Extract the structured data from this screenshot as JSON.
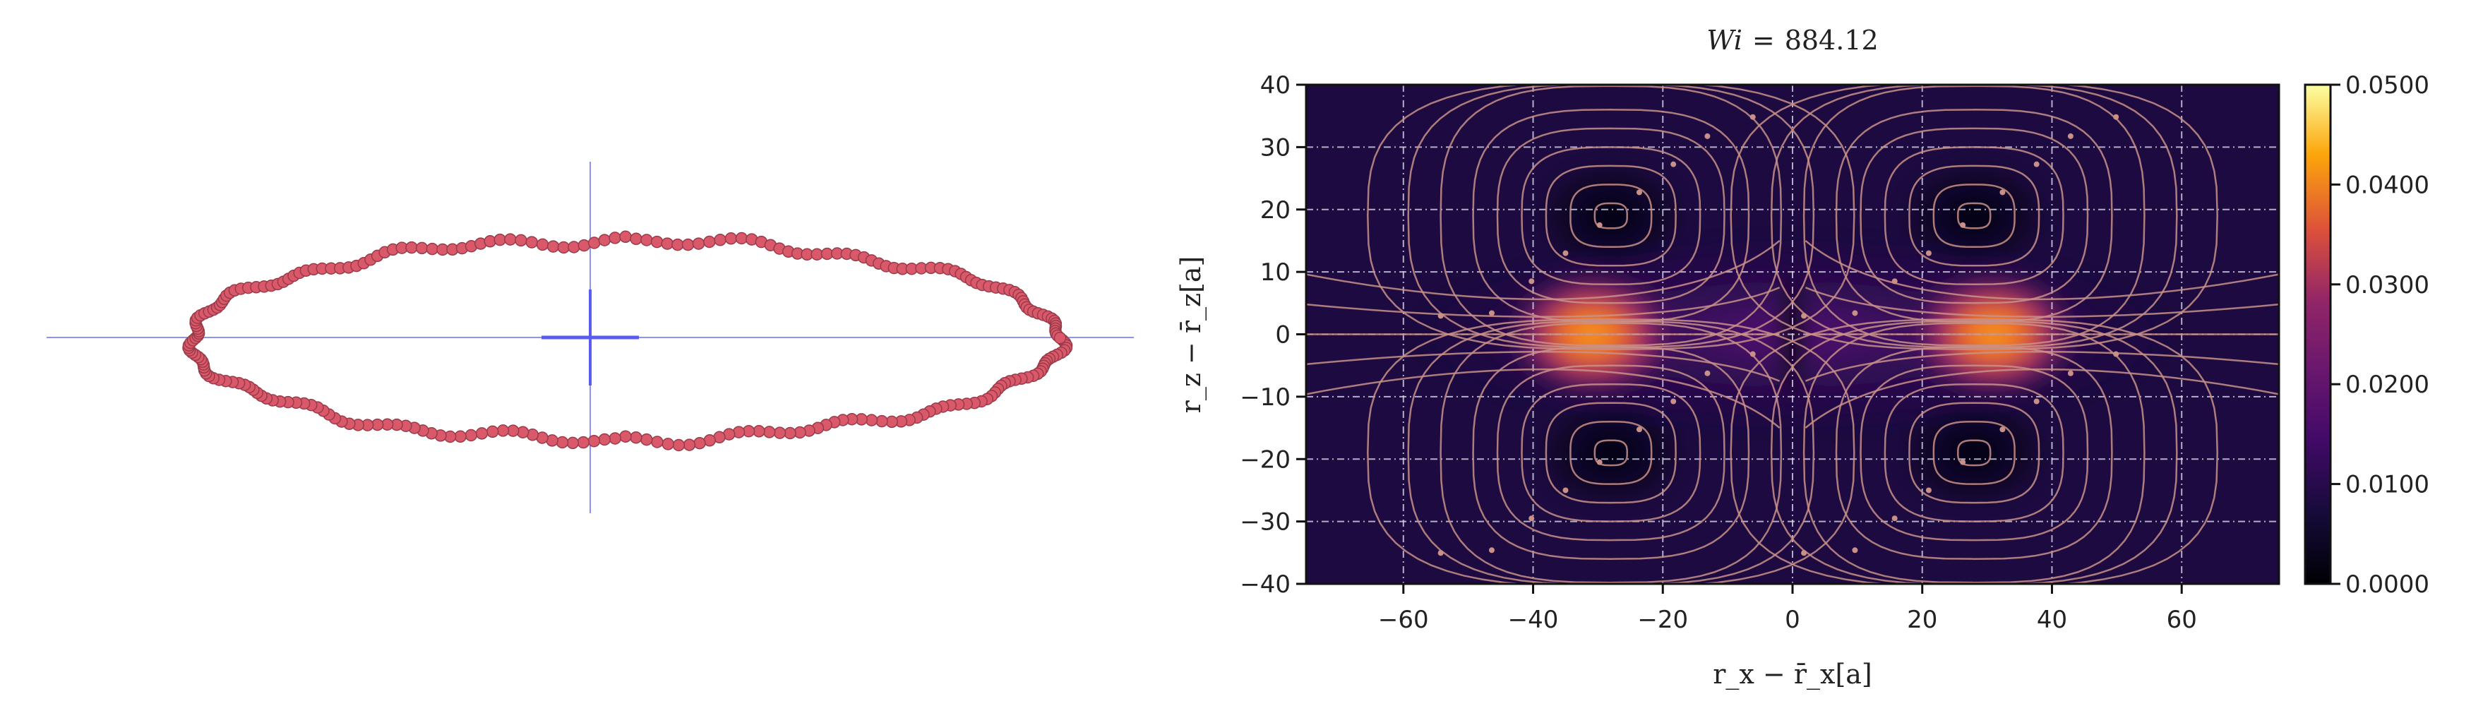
{
  "left_panel": {
    "bead_color": "#d9596a",
    "axis_color": "#6a6cf0"
  },
  "chart_data": {
    "type": "heatmap",
    "title": "Wi = 884.12",
    "title_parts": {
      "symbol": "Wi",
      "equals": "=",
      "value": "884.12"
    },
    "xlabel": "r_x − r̄_x[a]",
    "xlabel_parts": {
      "r": "r",
      "sub": "x",
      "minus": "−",
      "rbar": "r̄",
      "sub2": "x",
      "unit": "[a]"
    },
    "ylabel": "r_z − r̄_z[a]",
    "ylabel_parts": {
      "r": "r",
      "sub": "z",
      "minus": "−",
      "rbar": "r̄",
      "sub2": "z",
      "unit": "[a]"
    },
    "xlim": [
      -75,
      75
    ],
    "ylim": [
      -40,
      40
    ],
    "xticks": [
      -60,
      -40,
      -20,
      0,
      20,
      40,
      60
    ],
    "xtick_labels": [
      "−60",
      "−40",
      "−20",
      "0",
      "20",
      "40",
      "60"
    ],
    "yticks": [
      40,
      30,
      20,
      10,
      0,
      -10,
      -20,
      -30,
      -40
    ],
    "ytick_labels": [
      "40",
      "30",
      "20",
      "10",
      "0",
      "−10",
      "−20",
      "−30",
      "−40"
    ],
    "grid": true,
    "colormap": "inferno",
    "colorbar": {
      "range": [
        0,
        0.05
      ],
      "ticks": [
        0.05,
        0.04,
        0.03,
        0.02,
        0.01,
        0.0
      ],
      "tick_labels": [
        "0.0500",
        "0.0400",
        "0.0300",
        "0.0200",
        "0.0100",
        "0.0000"
      ]
    },
    "density_peaks": [
      {
        "x": -31,
        "y": 0,
        "value": 0.04
      },
      {
        "x": 31,
        "y": 0,
        "value": 0.04
      }
    ],
    "vortex_centers": [
      {
        "x": -28,
        "y": 19,
        "rotation": "ccw"
      },
      {
        "x": 28,
        "y": 19,
        "rotation": "cw"
      },
      {
        "x": -28,
        "y": -19,
        "rotation": "cw"
      },
      {
        "x": 28,
        "y": -19,
        "rotation": "ccw"
      }
    ],
    "streamline_color": "#c99088"
  }
}
